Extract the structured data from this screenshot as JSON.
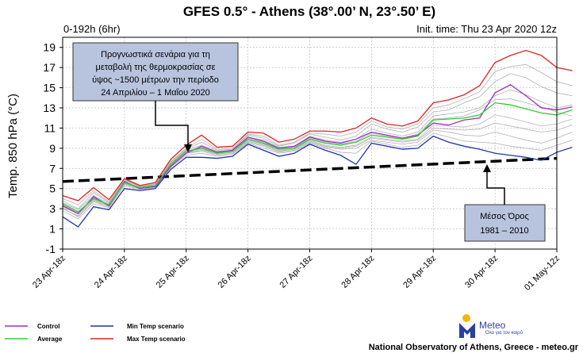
{
  "title": "GFES 0.5° - Athens (38°.00’ N, 23°.50’ E)",
  "range_label": "0-192h (6hr)",
  "init_time": "Init. time: Thu 23 Apr 2020 12z",
  "credit": "National Observatory of Athens, Greece - meteo.gr",
  "logo": {
    "name": "Meteo",
    "tagline": "Όλα για τον καιρό",
    "color": "#2a3f9e",
    "accent": "#f2b705"
  },
  "annotation_top": {
    "lines": [
      "Προγνωστικά σενάρια για τη",
      "μεταβολή της θερμοκρασίας σε",
      "ύψος ~1500 μέτρων την περίοδο",
      "24 Απριλίου – 1 Μαΐου 2020"
    ],
    "fill": "#b8c4de"
  },
  "annotation_bottom": {
    "lines": [
      "Μέσος Όρος",
      "1981 – 2010"
    ],
    "fill": "#b8c4de"
  },
  "legend": [
    {
      "name": "Control",
      "color": "#9b30c8"
    },
    {
      "name": "Average",
      "color": "#33cc33"
    },
    {
      "name": "Min Temp scenario",
      "color": "#2233aa"
    },
    {
      "name": "Max Temp scenario",
      "color": "#dd2222"
    }
  ],
  "chart_data": {
    "type": "line",
    "ylabel": "Temp. 850 hPa (°C)",
    "xlabel": "",
    "ylim": [
      -1,
      20
    ],
    "yticks": [
      -1,
      1,
      3,
      5,
      7,
      9,
      11,
      13,
      15,
      17,
      19
    ],
    "xlim": [
      0,
      32
    ],
    "xticks": [
      {
        "label": "23 Apr-18z",
        "x": 0
      },
      {
        "label": "24 Apr-18z",
        "x": 4
      },
      {
        "label": "25 Apr-18z",
        "x": 8
      },
      {
        "label": "26 Apr-18z",
        "x": 12
      },
      {
        "label": "27 Apr-18z",
        "x": 16
      },
      {
        "label": "28 Apr-18z",
        "x": 20
      },
      {
        "label": "29 Apr-18z",
        "x": 24
      },
      {
        "label": "30 Apr-18z",
        "x": 28
      },
      {
        "label": "01 May-12z",
        "x": 32
      }
    ],
    "grid": true,
    "climatology": {
      "x": [
        0,
        32
      ],
      "y": [
        5.7,
        8.0
      ]
    },
    "series": [
      {
        "name": "Max Temp scenario",
        "color": "#dd2222",
        "values": [
          4.3,
          3.8,
          5.1,
          3.9,
          6.0,
          5.3,
          5.6,
          7.9,
          9.3,
          10.3,
          9.1,
          9.2,
          10.6,
          10.5,
          9.6,
          9.9,
          10.7,
          10.7,
          10.6,
          11.0,
          12.0,
          11.4,
          11.2,
          11.7,
          13.5,
          13.8,
          14.3,
          15.2,
          17.5,
          18.2,
          18.7,
          18.2,
          17.0,
          16.7
        ]
      },
      {
        "name": "Control",
        "color": "#9b30c8",
        "values": [
          3.3,
          2.5,
          4.2,
          3.3,
          5.7,
          5.0,
          5.2,
          7.2,
          8.5,
          9.2,
          8.6,
          8.8,
          10.1,
          9.7,
          9.0,
          9.2,
          10.1,
          9.7,
          9.5,
          9.9,
          10.6,
          10.3,
          10.0,
          10.3,
          11.5,
          11.3,
          11.8,
          12.0,
          14.5,
          15.3,
          14.2,
          13.0,
          12.8,
          13.1
        ]
      },
      {
        "name": "Average",
        "color": "#33cc33",
        "values": [
          3.5,
          2.7,
          4.0,
          3.4,
          5.6,
          5.1,
          5.3,
          7.4,
          8.7,
          9.0,
          8.5,
          8.7,
          9.9,
          9.5,
          8.9,
          9.0,
          9.9,
          9.5,
          9.3,
          9.6,
          10.3,
          10.1,
          9.9,
          10.2,
          11.8,
          11.9,
          12.0,
          12.3,
          13.5,
          13.3,
          12.9,
          12.5,
          12.3,
          12.8
        ]
      },
      {
        "name": "Min Temp scenario",
        "color": "#2233aa",
        "values": [
          2.2,
          1.2,
          3.2,
          2.9,
          5.0,
          4.8,
          5.0,
          6.9,
          8.1,
          8.1,
          8.0,
          8.2,
          9.4,
          8.8,
          8.2,
          8.5,
          9.4,
          8.8,
          8.3,
          7.4,
          9.5,
          9.2,
          8.9,
          9.0,
          10.2,
          9.6,
          9.2,
          8.9,
          8.5,
          8.3,
          8.1,
          7.8,
          8.6,
          9.1
        ]
      }
    ],
    "members": [
      [
        3.8,
        3.0,
        4.6,
        3.6,
        5.8,
        5.2,
        5.4,
        7.6,
        8.9,
        9.6,
        8.8,
        8.9,
        10.3,
        10.0,
        9.2,
        9.5,
        10.4,
        10.1,
        9.8,
        10.2,
        11.4,
        10.9,
        10.6,
        11.1,
        12.6,
        12.8,
        13.5,
        14.1,
        15.6,
        16.4,
        16.0,
        15.1,
        14.5,
        14.2
      ],
      [
        3.1,
        2.2,
        3.7,
        3.2,
        5.4,
        5.0,
        5.2,
        7.2,
        8.5,
        8.7,
        8.3,
        8.5,
        9.6,
        9.2,
        8.6,
        8.8,
        9.6,
        9.1,
        8.9,
        9.0,
        9.8,
        9.6,
        9.4,
        9.6,
        10.8,
        10.6,
        10.3,
        10.2,
        10.6,
        10.2,
        9.8,
        9.5,
        10.0,
        10.6
      ],
      [
        3.6,
        2.9,
        4.3,
        3.5,
        5.7,
        5.1,
        5.4,
        7.5,
        8.8,
        9.3,
        8.7,
        8.8,
        10.1,
        9.8,
        9.1,
        9.2,
        10.2,
        9.8,
        9.6,
        9.9,
        10.9,
        10.5,
        10.2,
        10.6,
        12.2,
        12.4,
        12.6,
        13.0,
        14.2,
        14.8,
        14.3,
        13.6,
        13.0,
        13.3
      ],
      [
        3.2,
        2.5,
        3.9,
        3.3,
        5.5,
        5.1,
        5.3,
        7.3,
        8.6,
        8.9,
        8.4,
        8.6,
        9.8,
        9.4,
        8.8,
        8.9,
        9.8,
        9.3,
        9.1,
        9.3,
        10.1,
        9.9,
        9.7,
        9.9,
        11.3,
        11.2,
        11.1,
        11.4,
        12.3,
        12.0,
        11.6,
        11.2,
        11.4,
        11.9
      ],
      [
        4.0,
        3.4,
        4.8,
        3.7,
        5.9,
        5.2,
        5.5,
        7.7,
        9.0,
        9.9,
        8.9,
        9.0,
        10.4,
        10.2,
        9.3,
        9.6,
        10.5,
        10.4,
        10.2,
        10.6,
        11.7,
        11.1,
        10.9,
        11.4,
        13.0,
        13.3,
        13.9,
        14.6,
        16.6,
        17.1,
        17.3,
        16.5,
        15.6,
        15.2
      ],
      [
        2.8,
        2.0,
        3.5,
        3.1,
        5.3,
        4.9,
        5.1,
        7.1,
        8.3,
        8.5,
        8.2,
        8.4,
        9.5,
        9.0,
        8.5,
        8.7,
        9.5,
        9.0,
        8.6,
        8.5,
        9.7,
        9.4,
        9.1,
        9.3,
        10.5,
        10.1,
        9.7,
        9.6,
        9.5,
        9.2,
        9.0,
        8.8,
        9.3,
        9.8
      ],
      [
        3.4,
        2.6,
        4.1,
        3.4,
        5.6,
        5.0,
        5.3,
        7.4,
        8.7,
        9.1,
        8.5,
        8.7,
        10.0,
        9.6,
        8.9,
        9.1,
        10.0,
        9.6,
        9.4,
        9.7,
        10.5,
        10.2,
        10.0,
        10.4,
        11.9,
        12.0,
        12.2,
        12.8,
        13.8,
        13.9,
        13.5,
        13.1,
        12.6,
        12.2
      ],
      [
        3.0,
        2.3,
        3.8,
        3.2,
        5.5,
        5.0,
        5.2,
        7.3,
        8.5,
        8.8,
        8.4,
        8.6,
        9.7,
        9.3,
        8.7,
        8.9,
        9.7,
        9.2,
        9.0,
        9.2,
        10.0,
        9.8,
        9.6,
        9.8,
        11.0,
        10.9,
        10.8,
        10.9,
        11.5,
        11.2,
        10.9,
        10.6,
        10.8,
        11.3
      ]
    ]
  }
}
